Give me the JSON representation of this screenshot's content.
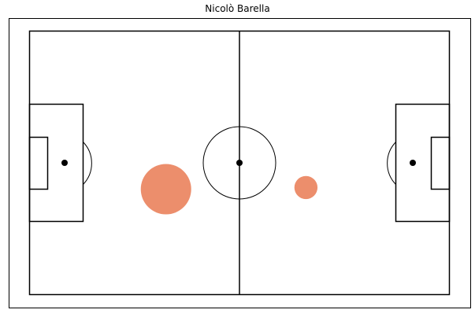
{
  "chart_data": {
    "type": "scatter",
    "title": "Nicolò Barella",
    "xlabel": "",
    "ylabel": "",
    "xlim": [
      0,
      120
    ],
    "ylim": [
      0,
      80
    ],
    "grid": false,
    "legend": "none",
    "colors": {
      "marker": "#ec8e6c",
      "lines": "#000000",
      "background": "#ffffff"
    },
    "points": [
      {
        "x": 39,
        "y": 48,
        "size": 95
      },
      {
        "x": 79,
        "y": 47.5,
        "size": 20
      }
    ]
  }
}
